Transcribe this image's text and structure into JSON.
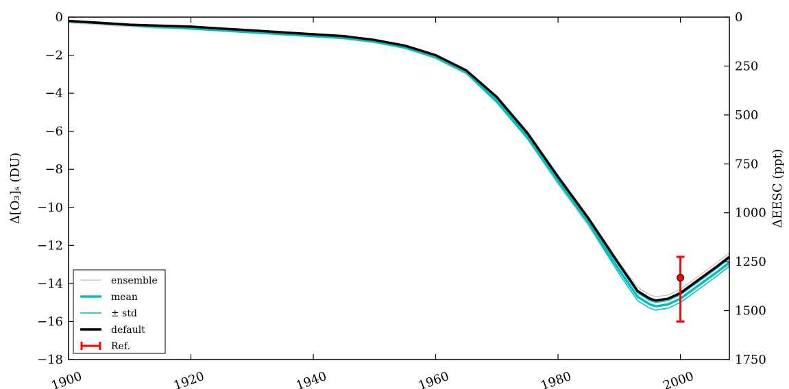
{
  "chart_data": {
    "type": "line",
    "x_ticks": [
      1900,
      1920,
      1940,
      1960,
      1980,
      2000
    ],
    "xlim": [
      1900,
      2008
    ],
    "ylim": [
      -18,
      0
    ],
    "y_ticks": [
      0,
      -2,
      -4,
      -6,
      -8,
      -10,
      -12,
      -14,
      -16,
      -18
    ],
    "y_tick_labels": [
      "0",
      "−2",
      "−4",
      "−6",
      "−8",
      "−10",
      "−12",
      "−14",
      "−16",
      "−18"
    ],
    "y2lim": [
      0,
      1750
    ],
    "y2_ticks": [
      0,
      250,
      500,
      750,
      1000,
      1250,
      1500,
      1750
    ],
    "y2_tick_labels": [
      "0",
      "250",
      "500",
      "750",
      "1000",
      "1250",
      "1500",
      "1750"
    ],
    "ylabel": "Δ[O₃]ₛ (DU)",
    "y2label": "ΔEESC (ppt)",
    "legend_position": "lower-left",
    "x": [
      1900,
      1905,
      1910,
      1915,
      1920,
      1925,
      1930,
      1935,
      1940,
      1945,
      1950,
      1955,
      1960,
      1965,
      1970,
      1975,
      1980,
      1985,
      1990,
      1993,
      1995,
      1996,
      1998,
      2000,
      2003,
      2006,
      2008
    ],
    "series": [
      {
        "name": "ensemble",
        "color": "#c8c8c8",
        "values": [
          -0.2,
          -0.3,
          -0.4,
          -0.5,
          -0.5,
          -0.6,
          -0.7,
          -0.8,
          -0.9,
          -1.0,
          -1.2,
          -1.5,
          -2.0,
          -2.8,
          -4.2,
          -6.0,
          -8.3,
          -10.5,
          -12.9,
          -14.2,
          -14.6,
          -14.7,
          -14.6,
          -14.3,
          -13.6,
          -12.9,
          -12.4
        ],
        "values_low": [
          -0.3,
          -0.4,
          -0.5,
          -0.6,
          -0.6,
          -0.7,
          -0.8,
          -0.9,
          -1.0,
          -1.1,
          -1.3,
          -1.6,
          -2.2,
          -3.0,
          -4.5,
          -6.4,
          -8.8,
          -11.0,
          -13.5,
          -14.9,
          -15.3,
          -15.4,
          -15.3,
          -15.0,
          -14.3,
          -13.6,
          -13.0
        ]
      },
      {
        "name": "mean",
        "color": "#00bfbf",
        "values": [
          -0.2,
          -0.3,
          -0.4,
          -0.5,
          -0.6,
          -0.7,
          -0.8,
          -0.9,
          -1.0,
          -1.1,
          -1.3,
          -1.6,
          -2.1,
          -2.9,
          -4.4,
          -6.3,
          -8.6,
          -10.8,
          -13.3,
          -14.7,
          -15.1,
          -15.2,
          -15.1,
          -14.8,
          -14.1,
          -13.4,
          -12.9
        ]
      },
      {
        "name": "± std",
        "color": "#00bfbf",
        "values": [
          -0.2,
          -0.3,
          -0.4,
          -0.5,
          -0.55,
          -0.65,
          -0.75,
          -0.85,
          -0.95,
          -1.05,
          -1.25,
          -1.55,
          -2.05,
          -2.85,
          -4.3,
          -6.2,
          -8.5,
          -10.7,
          -13.1,
          -14.5,
          -14.9,
          -15.0,
          -14.9,
          -14.6,
          -13.9,
          -13.2,
          -12.7
        ],
        "values_low": [
          -0.25,
          -0.35,
          -0.45,
          -0.55,
          -0.6,
          -0.7,
          -0.8,
          -0.9,
          -1.0,
          -1.1,
          -1.3,
          -1.65,
          -2.15,
          -2.95,
          -4.5,
          -6.4,
          -8.7,
          -10.9,
          -13.5,
          -14.9,
          -15.3,
          -15.4,
          -15.3,
          -15.0,
          -14.3,
          -13.6,
          -13.1
        ]
      },
      {
        "name": "default",
        "color": "#000000",
        "values": [
          -0.2,
          -0.3,
          -0.4,
          -0.45,
          -0.5,
          -0.6,
          -0.7,
          -0.8,
          -0.9,
          -1.0,
          -1.2,
          -1.5,
          -2.0,
          -2.8,
          -4.2,
          -6.1,
          -8.4,
          -10.6,
          -13.0,
          -14.4,
          -14.8,
          -14.9,
          -14.8,
          -14.5,
          -13.8,
          -13.1,
          -12.6
        ]
      }
    ],
    "reference": {
      "name": "Ref.",
      "color": "#ff0000",
      "x": 2000,
      "y": -13.7,
      "y_err_low": -16.0,
      "y_err_high": -12.6
    }
  }
}
